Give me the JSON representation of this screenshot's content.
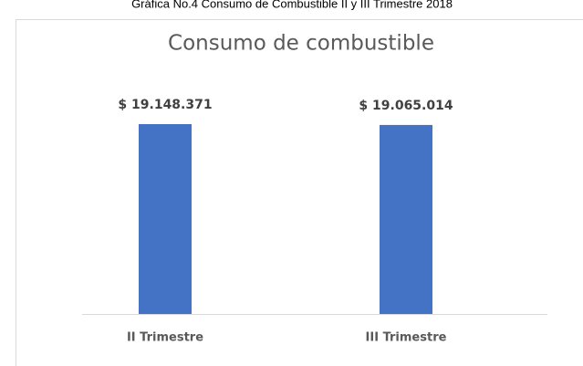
{
  "caption": "Gráfica No.4 Consumo de Combustible II y III Trimestre 2018",
  "chart_data": {
    "type": "bar",
    "title": "Consumo de combustible",
    "categories": [
      "II Trimestre",
      "III Trimestre"
    ],
    "values": [
      19148371,
      19065014
    ],
    "value_labels": [
      "$ 19.148.371",
      "$ 19.065.014"
    ],
    "color": "#4472c4"
  }
}
